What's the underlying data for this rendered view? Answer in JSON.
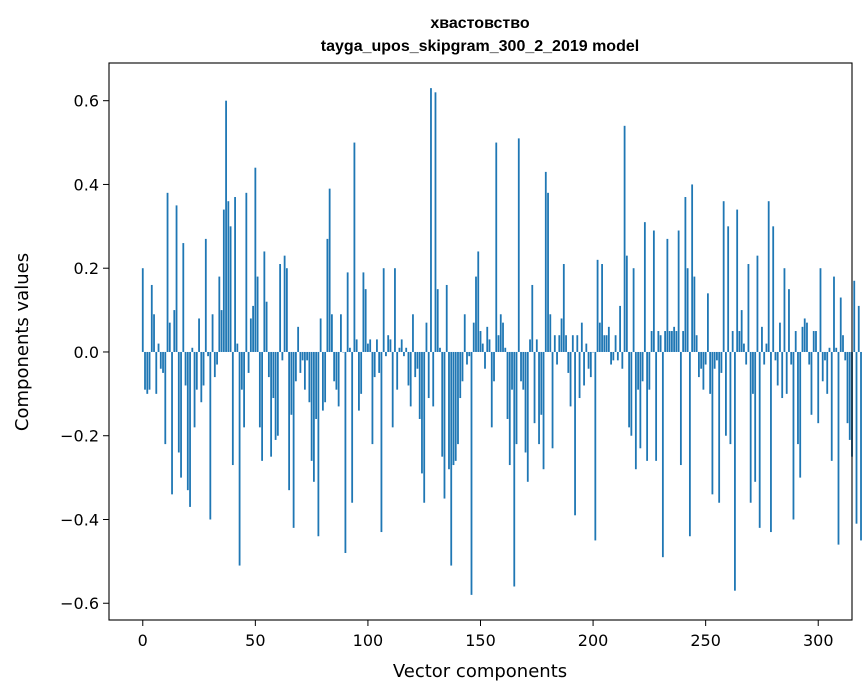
{
  "chart_data": {
    "type": "bar",
    "title": "хвастовство",
    "subtitle": "tayga_upos_skipgram_300_2_2019 model",
    "xlabel": "Vector components",
    "ylabel": "Components values",
    "xlim": [
      -15,
      315
    ],
    "ylim": [
      -0.64,
      0.69
    ],
    "xticks": [
      0,
      50,
      100,
      150,
      200,
      250,
      300
    ],
    "yticks": [
      -0.6,
      -0.4,
      -0.2,
      0.0,
      0.2,
      0.4,
      0.6
    ],
    "ytick_labels": [
      "−0.6",
      "−0.4",
      "−0.2",
      "0.0",
      "0.2",
      "0.4",
      "0.6"
    ],
    "bar_color": "#1f77b4",
    "grid": false,
    "values": [
      0.2,
      -0.09,
      -0.1,
      -0.09,
      0.16,
      0.09,
      -0.1,
      0.02,
      -0.04,
      -0.05,
      -0.22,
      0.38,
      0.07,
      -0.34,
      0.1,
      0.35,
      -0.24,
      -0.3,
      0.26,
      -0.08,
      -0.33,
      -0.37,
      0.01,
      -0.18,
      -0.09,
      0.08,
      -0.12,
      -0.08,
      0.27,
      -0.01,
      -0.4,
      0.09,
      -0.06,
      -0.03,
      0.18,
      0.1,
      0.34,
      0.6,
      0.36,
      0.3,
      -0.27,
      0.37,
      0.02,
      -0.51,
      -0.09,
      -0.18,
      0.38,
      -0.05,
      0.08,
      0.11,
      0.44,
      0.18,
      -0.18,
      -0.26,
      0.24,
      0.12,
      -0.06,
      -0.25,
      -0.11,
      -0.21,
      -0.2,
      0.21,
      -0.02,
      0.23,
      0.2,
      -0.33,
      -0.15,
      -0.42,
      -0.07,
      0.06,
      -0.05,
      -0.02,
      -0.09,
      -0.02,
      -0.12,
      -0.26,
      -0.31,
      -0.16,
      -0.44,
      0.08,
      -0.14,
      -0.12,
      0.27,
      0.39,
      0.09,
      -0.07,
      -0.09,
      -0.13,
      0.09,
      0.0,
      -0.48,
      0.19,
      0.01,
      -0.36,
      0.5,
      0.03,
      -0.14,
      -0.1,
      0.19,
      0.15,
      0.02,
      0.03,
      -0.22,
      -0.06,
      0.03,
      -0.05,
      -0.43,
      0.2,
      -0.01,
      0.04,
      0.03,
      -0.18,
      0.2,
      -0.09,
      0.01,
      0.03,
      -0.01,
      0.01,
      -0.08,
      -0.13,
      0.09,
      -0.06,
      -0.04,
      -0.16,
      -0.29,
      -0.36,
      0.07,
      -0.11,
      0.63,
      -0.13,
      0.62,
      0.15,
      0.01,
      -0.25,
      -0.35,
      0.16,
      -0.28,
      -0.51,
      -0.27,
      -0.26,
      -0.22,
      -0.11,
      -0.07,
      0.09,
      -0.03,
      -0.01,
      -0.58,
      0.07,
      0.18,
      0.24,
      0.05,
      0.02,
      -0.04,
      0.06,
      0.03,
      -0.18,
      -0.07,
      0.5,
      0.04,
      0.09,
      0.07,
      0.01,
      -0.16,
      -0.27,
      -0.09,
      -0.56,
      -0.22,
      0.51,
      -0.07,
      -0.09,
      -0.24,
      -0.31,
      0.03,
      0.16,
      -0.17,
      0.03,
      -0.22,
      -0.15,
      -0.28,
      0.43,
      0.38,
      0.09,
      -0.23,
      0.04,
      -0.03,
      0.04,
      0.08,
      0.21,
      0.04,
      -0.05,
      -0.13,
      0.04,
      -0.39,
      0.04,
      -0.11,
      0.07,
      -0.08,
      0.02,
      -0.04,
      -0.06,
      0.0,
      -0.45,
      0.22,
      0.07,
      0.21,
      0.04,
      0.04,
      0.06,
      -0.03,
      -0.02,
      0.04,
      -0.02,
      0.11,
      -0.04,
      0.54,
      0.23,
      -0.18,
      -0.2,
      0.2,
      -0.28,
      -0.09,
      -0.23,
      -0.07,
      0.31,
      -0.26,
      -0.09,
      0.05,
      0.29,
      -0.26,
      0.05,
      0.04,
      -0.49,
      0.05,
      0.27,
      0.05,
      0.05,
      0.06,
      0.05,
      0.29,
      -0.27,
      0.05,
      0.37,
      0.2,
      -0.44,
      0.4,
      0.18,
      0.04,
      -0.06,
      -0.04,
      -0.09,
      -0.03,
      0.14,
      -0.1,
      -0.34,
      -0.04,
      -0.02,
      -0.36,
      -0.05,
      0.36,
      -0.2,
      0.3,
      -0.22,
      0.05,
      -0.57,
      0.34,
      0.05,
      0.1,
      0.02,
      -0.03,
      0.21,
      -0.36,
      -0.1,
      -0.31,
      0.23,
      -0.42,
      0.06,
      -0.03,
      0.02,
      0.36,
      -0.43,
      0.3,
      -0.02,
      -0.08,
      0.07,
      -0.11,
      0.2,
      -0.1,
      0.15,
      -0.03,
      -0.4,
      0.05,
      -0.22,
      -0.3,
      0.06,
      0.08,
      0.07,
      -0.03,
      -0.15,
      0.05,
      0.05,
      -0.17,
      0.2,
      -0.07,
      -0.02,
      -0.1,
      0.01,
      -0.26,
      0.18,
      0.01,
      -0.46,
      0.13,
      0.04,
      -0.02,
      -0.17,
      -0.21,
      -0.25,
      0.17,
      -0.41,
      0.11,
      -0.45
    ]
  }
}
